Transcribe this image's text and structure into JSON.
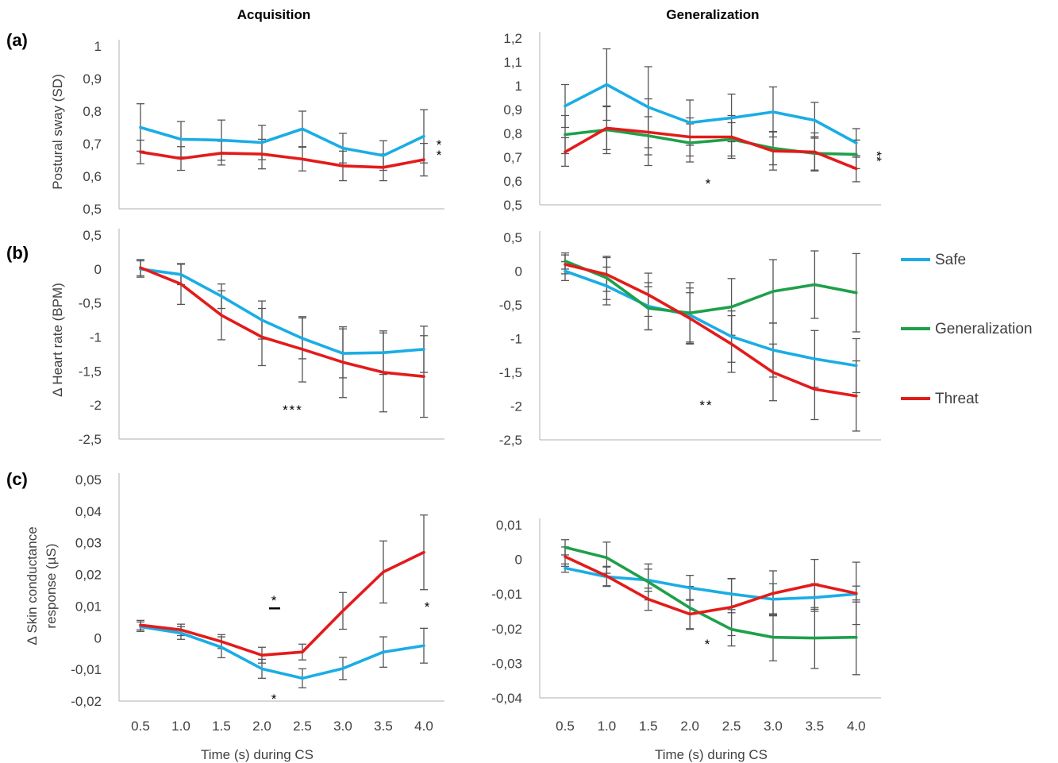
{
  "column_titles": [
    "Acquisition",
    "Generalization"
  ],
  "panel_labels": [
    "(a)",
    "(b)",
    "(c)"
  ],
  "xlabel": "Time (s) during CS",
  "x_ticks": [
    "0.5",
    "1.0",
    "1.5",
    "2.0",
    "2.5",
    "3.0",
    "3.5",
    "4.0"
  ],
  "legend": [
    {
      "name": "Safe",
      "color": "#1AADE5"
    },
    {
      "name": "Generalization",
      "color": "#1EA04A"
    },
    {
      "name": "Threat",
      "color": "#E31B1B"
    }
  ],
  "colors": {
    "Safe": "#1AADE5",
    "Generalization": "#1EA04A",
    "Threat": "#E31B1B",
    "errorbar": "#555555",
    "axis": "#bfbfbf"
  },
  "chart_data": [
    {
      "id": "a-acq",
      "type": "line",
      "column": "Acquisition",
      "row": "(a)",
      "ylabel": "Postural sway (SD)",
      "y_ticks": [
        "0,5",
        "0,6",
        "0,7",
        "0,8",
        "0,9",
        "1"
      ],
      "ylim": [
        0.5,
        1.05
      ],
      "x": [
        0.5,
        1.0,
        1.5,
        2.0,
        2.5,
        3.0,
        3.5,
        4.0
      ],
      "series": [
        {
          "name": "Safe",
          "values": [
            0.775,
            0.735,
            0.732,
            0.724,
            0.77,
            0.705,
            0.68,
            0.745
          ],
          "err": [
            0.08,
            0.06,
            0.068,
            0.058,
            0.06,
            0.05,
            0.05,
            0.09
          ]
        },
        {
          "name": "Threat",
          "values": [
            0.692,
            0.67,
            0.688,
            0.685,
            0.668,
            0.645,
            0.64,
            0.666
          ],
          "err": [
            0.04,
            0.04,
            0.04,
            0.05,
            0.04,
            0.05,
            0.045,
            0.055
          ]
        }
      ],
      "annotations": [
        "*",
        "*"
      ]
    },
    {
      "id": "a-gen",
      "type": "line",
      "column": "Generalization",
      "row": "(a)",
      "y_ticks": [
        "0,5",
        "0,6",
        "0,7",
        "0,8",
        "0,9",
        "1",
        "1,1",
        "1,2"
      ],
      "ylim": [
        0.5,
        1.2
      ],
      "x": [
        0.5,
        1.0,
        1.5,
        2.0,
        2.5,
        3.0,
        3.5,
        4.0
      ],
      "series": [
        {
          "name": "Safe",
          "values": [
            0.915,
            1.005,
            0.91,
            0.845,
            0.865,
            0.89,
            0.855,
            0.76
          ],
          "err": [
            0.09,
            0.15,
            0.17,
            0.095,
            0.1,
            0.105,
            0.075,
            0.06
          ]
        },
        {
          "name": "Generalization",
          "values": [
            0.795,
            0.815,
            0.79,
            0.76,
            0.775,
            0.738,
            0.716,
            0.712
          ],
          "err": [
            0.08,
            0.1,
            0.08,
            0.08,
            0.07,
            0.07,
            0.07,
            0.06
          ]
        },
        {
          "name": "Threat",
          "values": [
            0.722,
            0.822,
            0.805,
            0.785,
            0.785,
            0.726,
            0.722,
            0.652
          ],
          "err": [
            0.06,
            0.09,
            0.14,
            0.08,
            0.09,
            0.08,
            0.08,
            0.055
          ]
        }
      ],
      "annotations": [
        "**",
        "*"
      ]
    },
    {
      "id": "b-acq",
      "type": "line",
      "column": "Acquisition",
      "row": "(b)",
      "ylabel": "Δ Heart rate (BPM)",
      "y_ticks": [
        "-2,5",
        "-2",
        "-1,5",
        "-1",
        "-0,5",
        "0",
        "0,5"
      ],
      "ylim": [
        -2.5,
        0.5
      ],
      "x": [
        0.5,
        1.0,
        1.5,
        2.0,
        2.5,
        3.0,
        3.5,
        4.0
      ],
      "series": [
        {
          "name": "Safe",
          "values": [
            0.0,
            -0.08,
            -0.4,
            -0.75,
            -1.02,
            -1.24,
            -1.23,
            -1.18
          ],
          "err": [
            0.12,
            0.15,
            0.18,
            0.28,
            0.3,
            0.36,
            0.32,
            0.34
          ]
        },
        {
          "name": "Threat",
          "values": [
            0.02,
            -0.22,
            -0.68,
            -1.0,
            -1.18,
            -1.37,
            -1.52,
            -1.58
          ],
          "err": [
            0.12,
            0.3,
            0.36,
            0.42,
            0.48,
            0.52,
            0.58,
            0.6
          ]
        }
      ],
      "annotations": [
        "***"
      ]
    },
    {
      "id": "b-gen",
      "type": "line",
      "column": "Generalization",
      "row": "(b)",
      "y_ticks": [
        "-2,5",
        "-2",
        "-1,5",
        "-1",
        "-0,5",
        "0",
        "0,5"
      ],
      "ylim": [
        -2.5,
        0.5
      ],
      "x": [
        0.5,
        1.0,
        1.5,
        2.0,
        2.5,
        3.0,
        3.5,
        4.0
      ],
      "series": [
        {
          "name": "Safe",
          "values": [
            0.0,
            -0.22,
            -0.52,
            -0.65,
            -0.97,
            -1.17,
            -1.3,
            -1.4
          ],
          "err": [
            0.14,
            0.28,
            0.35,
            0.4,
            0.38,
            0.4,
            0.42,
            0.4
          ]
        },
        {
          "name": "Generalization",
          "values": [
            0.15,
            -0.1,
            -0.55,
            -0.62,
            -0.53,
            -0.3,
            -0.2,
            -0.32
          ],
          "err": [
            0.12,
            0.32,
            0.32,
            0.45,
            0.42,
            0.47,
            0.5,
            0.58
          ]
        },
        {
          "name": "Threat",
          "values": [
            0.1,
            -0.05,
            -0.35,
            -0.7,
            -1.08,
            -1.5,
            -1.75,
            -1.85
          ],
          "err": [
            0.14,
            0.25,
            0.32,
            0.38,
            0.42,
            0.42,
            0.45,
            0.52
          ]
        }
      ],
      "annotations": [
        "**"
      ]
    },
    {
      "id": "c-acq",
      "type": "line",
      "column": "Acquisition",
      "row": "(c)",
      "ylabel": "Δ Skin conductance response  (µS)",
      "y_ticks": [
        "-0,02",
        "-0,01",
        "0",
        "0,01",
        "0,02",
        "0,03",
        "0,04",
        "0,05"
      ],
      "ylim": [
        -0.02,
        0.05
      ],
      "x": [
        0.5,
        1.0,
        1.5,
        2.0,
        2.5,
        3.0,
        3.5,
        4.0
      ],
      "series": [
        {
          "name": "Safe",
          "values": [
            0.0035,
            0.0015,
            -0.003,
            -0.0098,
            -0.0128,
            -0.0097,
            -0.0045,
            -0.0025
          ],
          "err": [
            0.0015,
            0.002,
            0.0033,
            0.003,
            0.003,
            0.0035,
            0.0048,
            0.0055
          ]
        },
        {
          "name": "Threat",
          "values": [
            0.004,
            0.0025,
            -0.0012,
            -0.0055,
            -0.0045,
            0.0085,
            0.0208,
            0.027
          ],
          "err": [
            0.0015,
            0.0018,
            0.0022,
            0.0025,
            0.0025,
            0.0058,
            0.0098,
            0.0118
          ]
        }
      ],
      "annotations": [
        "*",
        "*",
        "*"
      ]
    },
    {
      "id": "c-gen",
      "type": "line",
      "column": "Generalization",
      "row": "(c)",
      "y_ticks": [
        "-0,04",
        "-0,03",
        "-0,02",
        "-0,01",
        "0",
        "0,01"
      ],
      "ylim": [
        -0.04,
        0.01
      ],
      "x": [
        0.5,
        1.0,
        1.5,
        2.0,
        2.5,
        3.0,
        3.5,
        4.0
      ],
      "series": [
        {
          "name": "Safe",
          "values": [
            -0.0025,
            -0.005,
            -0.006,
            -0.0082,
            -0.01,
            -0.0115,
            -0.011,
            -0.01
          ],
          "err": [
            0.0012,
            0.0028,
            0.0032,
            0.0036,
            0.0045,
            0.0045,
            0.004,
            0.0023
          ]
        },
        {
          "name": "Generalization",
          "values": [
            0.0035,
            0.0005,
            -0.0065,
            -0.014,
            -0.0202,
            -0.0225,
            -0.0227,
            -0.0225
          ],
          "err": [
            0.0022,
            0.0045,
            0.0052,
            0.0062,
            0.0048,
            0.0068,
            0.0088,
            0.0108
          ]
        },
        {
          "name": "Threat",
          "values": [
            0.0008,
            -0.0048,
            -0.0115,
            -0.0158,
            -0.0138,
            -0.0098,
            -0.0072,
            -0.0098
          ],
          "err": [
            0.0028,
            0.0028,
            0.0032,
            0.0042,
            0.0082,
            0.0065,
            0.0072,
            0.009
          ]
        }
      ],
      "annotations": [
        "*"
      ]
    }
  ]
}
